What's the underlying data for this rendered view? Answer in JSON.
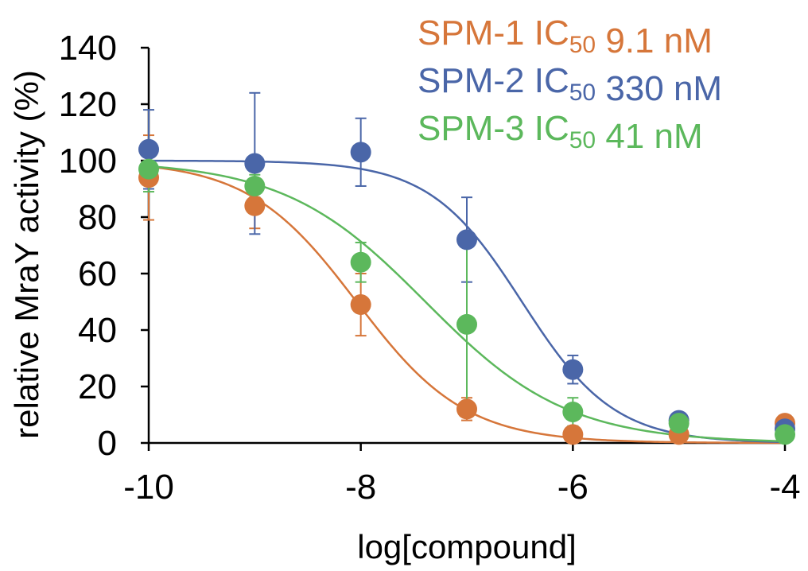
{
  "chart_data": {
    "type": "scatter",
    "title": "",
    "xlabel": "log[compound]",
    "ylabel": "relative MraY activity (%)",
    "xlim": [
      -10,
      -4
    ],
    "ylim": [
      0,
      140
    ],
    "xticks": [
      -10,
      -8,
      -6,
      -4
    ],
    "yticks": [
      0,
      20,
      40,
      60,
      80,
      100,
      120,
      140
    ],
    "grid": false,
    "legend_position": "top-right",
    "x": [
      -10,
      -9,
      -8,
      -7,
      -6,
      -5,
      -4
    ],
    "series": [
      {
        "name": "SPM-1",
        "ic50_label": "IC",
        "ic50_subscript": "50",
        "ic50_value": "9.1 nM",
        "logIC50": -8.04,
        "hill": 0.85,
        "color": "#D6763A",
        "values": [
          94,
          84,
          49,
          12,
          3,
          3,
          7
        ],
        "errors": [
          15,
          8,
          11,
          4,
          1,
          1,
          1
        ]
      },
      {
        "name": "SPM-2",
        "ic50_label": "IC",
        "ic50_subscript": "50",
        "ic50_value": "330 nM",
        "logIC50": -6.48,
        "hill": 1.0,
        "color": "#4A66A8",
        "values": [
          104,
          99,
          103,
          72,
          26,
          8,
          5
        ],
        "errors": [
          14,
          25,
          12,
          15,
          5,
          1,
          1
        ]
      },
      {
        "name": "SPM-3",
        "ic50_label": "IC",
        "ic50_subscript": "50",
        "ic50_value": "41 nM",
        "logIC50": -7.39,
        "hill": 0.65,
        "color": "#5CB85C",
        "values": [
          97,
          91,
          64,
          42,
          11,
          7,
          3
        ],
        "errors": [
          8,
          4,
          7,
          30,
          5,
          1,
          1
        ]
      }
    ]
  }
}
